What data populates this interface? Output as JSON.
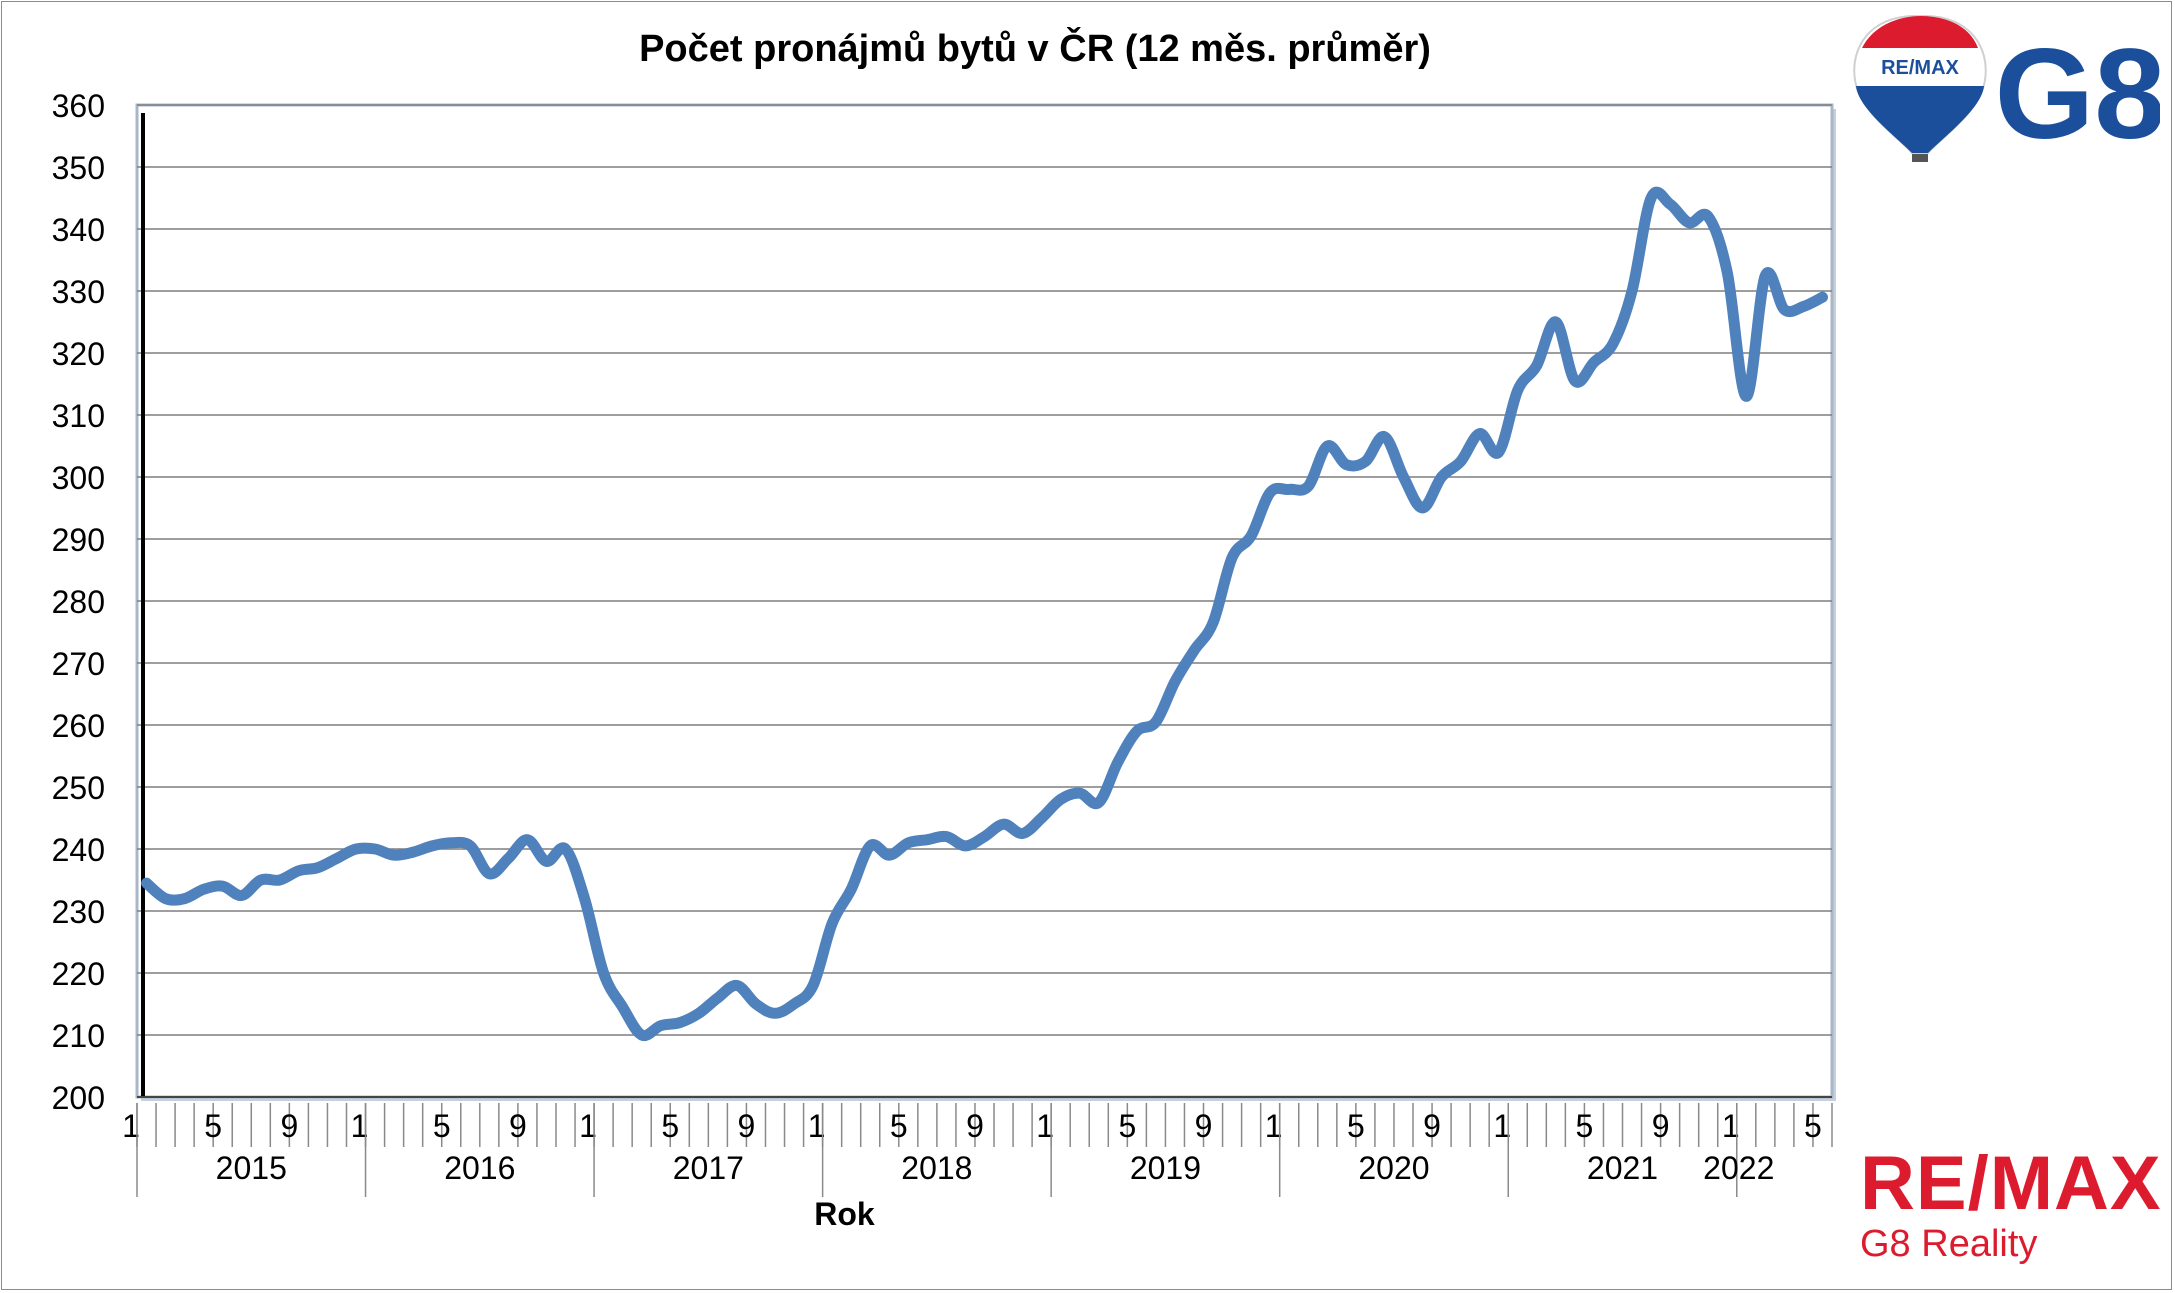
{
  "title": "Počet pronájmů bytů v ČR (12 měs. průměr)",
  "logos": {
    "balloon_text": "RE/MAX",
    "g8_text": "G8",
    "remax_text": "RE/MAX",
    "remax_sub": "G8 Reality"
  },
  "colors": {
    "line": "#4f81bd",
    "grid": "#7f7f7f",
    "plot_border": "#000000",
    "brand_red": "#dc1c2e",
    "brand_blue": "#1b4f9c"
  },
  "chart_data": {
    "type": "line",
    "title": "Počet pronájmů bytů v ČR (12 měs. průměr)",
    "xlabel": "Rok",
    "ylabel": "",
    "ylim": [
      200,
      360
    ],
    "yticks": [
      200,
      210,
      220,
      230,
      240,
      250,
      260,
      270,
      280,
      290,
      300,
      310,
      320,
      330,
      340,
      350,
      360
    ],
    "grid": true,
    "legend": "none",
    "month_tick_labels": [
      "1",
      "5",
      "9"
    ],
    "years": [
      "2015",
      "2016",
      "2017",
      "2018",
      "2019",
      "2020",
      "2021",
      "2022"
    ],
    "series": [
      {
        "values": [
          234.5,
          232,
          232,
          233.5,
          234,
          232.5,
          235,
          235,
          236.5,
          237,
          238.5,
          240,
          240,
          239,
          239.5,
          240.5,
          241,
          240.5,
          236,
          238.5,
          241.5,
          238,
          240,
          232,
          220,
          214.5,
          210,
          211.5,
          212,
          213.5,
          216,
          218,
          215,
          213.5,
          215,
          218,
          228,
          233.5,
          240.5,
          239,
          241,
          241.5,
          242,
          240.5,
          242,
          244,
          242.5,
          245,
          248,
          249,
          247.5,
          254,
          259,
          260.5,
          267,
          272,
          276.5,
          287,
          290.5,
          297.5,
          298,
          298.5,
          305,
          302,
          302.5,
          306.5,
          300,
          295,
          300,
          302.5,
          307,
          304,
          314,
          318,
          325,
          315.5,
          318.5,
          321.5,
          330,
          345,
          344,
          341,
          342,
          333,
          313,
          332.5,
          327,
          327.5,
          329
        ]
      }
    ]
  }
}
